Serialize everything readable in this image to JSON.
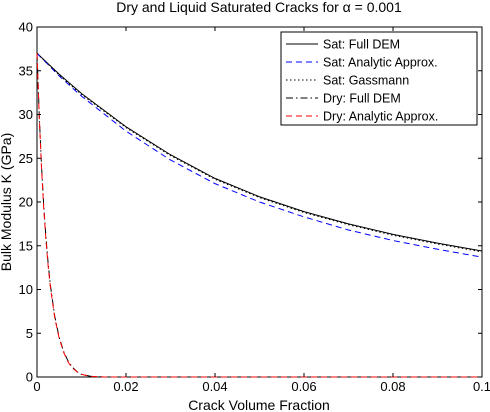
{
  "chart_data": {
    "type": "line",
    "title": "Dry and Liquid Saturated Cracks for α = 0.001",
    "xlabel": "Crack Volume Fraction",
    "ylabel": "Bulk Modulus K (GPa)",
    "xlim": [
      0,
      0.1
    ],
    "ylim": [
      0,
      40
    ],
    "xticks": [
      0,
      0.02,
      0.04,
      0.06,
      0.08,
      0.1
    ],
    "xtick_labels": [
      "0",
      "0.02",
      "0.04",
      "0.06",
      "0.08",
      "0.1"
    ],
    "yticks": [
      0,
      5,
      10,
      15,
      20,
      25,
      30,
      35,
      40
    ],
    "ytick_labels": [
      "0",
      "5",
      "10",
      "15",
      "20",
      "25",
      "30",
      "35",
      "40"
    ],
    "grid": false,
    "legend_position": "top-right",
    "series": [
      {
        "name": "Sat: Full DEM",
        "style": "solid",
        "color": "#000000",
        "x": [
          0,
          0.005,
          0.01,
          0.02,
          0.03,
          0.04,
          0.05,
          0.06,
          0.07,
          0.08,
          0.09,
          0.1
        ],
        "y": [
          37.0,
          34.6,
          32.4,
          28.6,
          25.4,
          22.7,
          20.6,
          18.9,
          17.5,
          16.3,
          15.3,
          14.4
        ]
      },
      {
        "name": "Sat: Analytic Approx.",
        "style": "dashed",
        "color": "#0000ff",
        "x": [
          0,
          0.005,
          0.01,
          0.02,
          0.03,
          0.04,
          0.05,
          0.06,
          0.07,
          0.08,
          0.09,
          0.1
        ],
        "y": [
          37.0,
          34.4,
          32.1,
          28.1,
          24.8,
          22.1,
          20.0,
          18.3,
          16.8,
          15.6,
          14.6,
          13.7
        ]
      },
      {
        "name": "Sat: Gassmann",
        "style": "dotted",
        "color": "#000000",
        "x": [
          0,
          0.005,
          0.01,
          0.02,
          0.03,
          0.04,
          0.05,
          0.06,
          0.07,
          0.08,
          0.09,
          0.1
        ],
        "y": [
          37.0,
          34.5,
          32.3,
          28.5,
          25.3,
          22.6,
          20.5,
          18.8,
          17.4,
          16.2,
          15.2,
          14.3
        ]
      },
      {
        "name": "Dry: Full DEM",
        "style": "dashdot",
        "color": "#000000",
        "x": [
          0,
          0.0005,
          0.001,
          0.0015,
          0.002,
          0.0025,
          0.003,
          0.004,
          0.005,
          0.006,
          0.007,
          0.008,
          0.009,
          0.01,
          0.012,
          0.015,
          0.02,
          0.05,
          0.1
        ],
        "y": [
          37.0,
          30.0,
          24.3,
          19.7,
          16.0,
          13.0,
          10.5,
          6.9,
          4.5,
          2.9,
          1.8,
          1.1,
          0.6,
          0.3,
          0.08,
          0.0,
          0.0,
          0.0,
          0.0
        ]
      },
      {
        "name": "Dry: Analytic Approx.",
        "style": "dashed",
        "color": "#ff0000",
        "x": [
          0,
          0.0005,
          0.001,
          0.0015,
          0.002,
          0.0025,
          0.003,
          0.004,
          0.005,
          0.006,
          0.007,
          0.008,
          0.009,
          0.01,
          0.012,
          0.015,
          0.02,
          0.05,
          0.1
        ],
        "y": [
          37.0,
          29.8,
          24.0,
          19.4,
          15.7,
          12.7,
          10.3,
          6.7,
          4.4,
          2.8,
          1.7,
          1.0,
          0.6,
          0.3,
          0.08,
          0.0,
          0.0,
          0.0,
          0.0
        ]
      }
    ]
  }
}
